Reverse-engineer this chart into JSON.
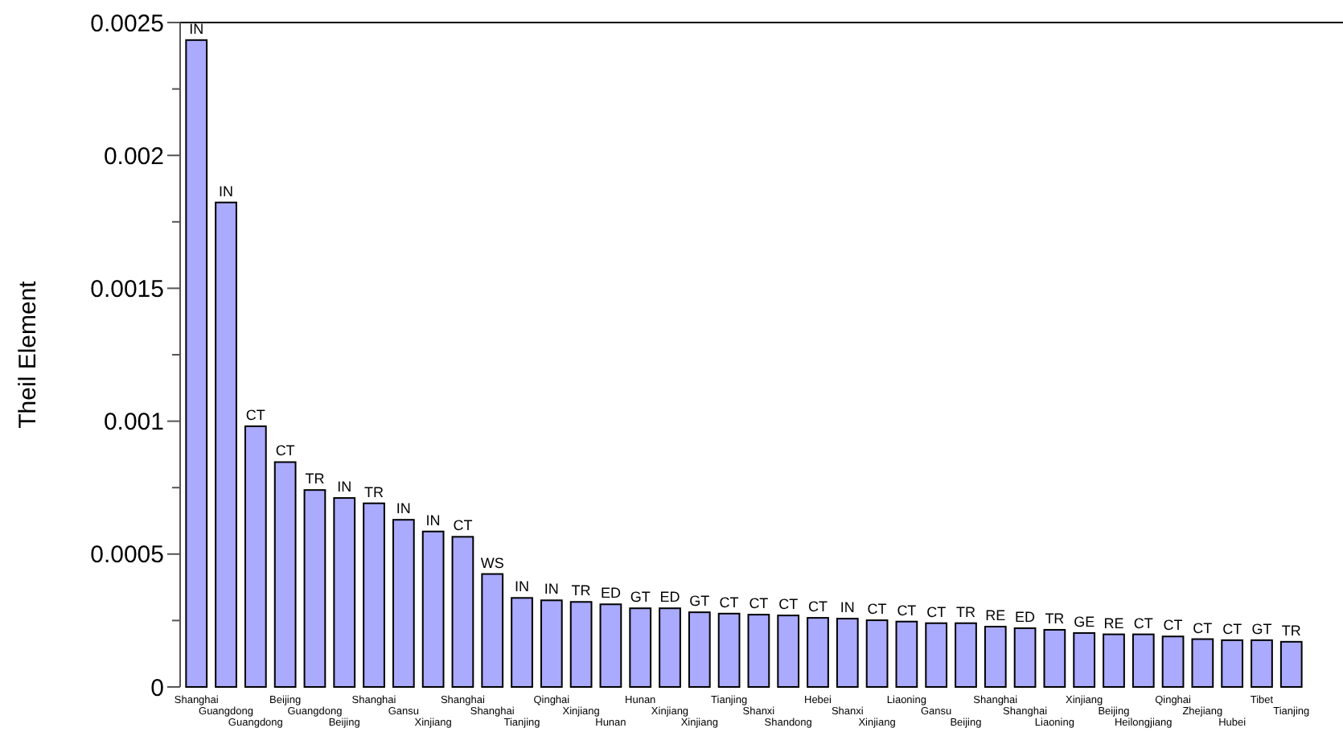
{
  "chart_data": {
    "type": "bar",
    "ylabel": "Theil Element",
    "categories": [
      "Shanghai",
      "Guangdong",
      "Guangdong",
      "Beijing",
      "Guangdong",
      "Beijing",
      "Shanghai",
      "Gansu",
      "Xinjiang",
      "Shanghai",
      "Shanghai",
      "Tianjing",
      "Qinghai",
      "Xinjiang",
      "Hunan",
      "Hunan",
      "Xinjiang",
      "Xinjiang",
      "Tianjing",
      "Shanxi",
      "Shandong",
      "Hebei",
      "Shanxi",
      "Xinjiang",
      "Liaoning",
      "Gansu",
      "Beijing",
      "Shanghai",
      "Shanghai",
      "Liaoning",
      "Xinjiang",
      "Beijing",
      "Heilongjiang",
      "Qinghai",
      "Zhejiang",
      "Hubei",
      "Tibet",
      "Tianjing"
    ],
    "values": [
      0.002434,
      0.001823,
      0.000981,
      0.000846,
      0.000741,
      0.000711,
      0.000691,
      0.000629,
      0.000585,
      0.000565,
      0.000425,
      0.000335,
      0.000326,
      0.00032,
      0.000311,
      0.000296,
      0.000296,
      0.000281,
      0.000276,
      0.000272,
      0.000269,
      0.00026,
      0.000257,
      0.000251,
      0.000246,
      0.00024,
      0.00024,
      0.000227,
      0.000221,
      0.000215,
      0.000203,
      0.000198,
      0.000198,
      0.00019,
      0.00018,
      0.000176,
      0.000176,
      0.00017
    ],
    "value_labels": [
      "IN",
      "IN",
      "CT",
      "CT",
      "TR",
      "IN",
      "TR",
      "IN",
      "IN",
      "CT",
      "WS",
      "IN",
      "IN",
      "TR",
      "ED",
      "GT",
      "ED",
      "GT",
      "CT",
      "CT",
      "CT",
      "CT",
      "IN",
      "CT",
      "CT",
      "CT",
      "TR",
      "RE",
      "ED",
      "TR",
      "GE",
      "RE",
      "CT",
      "CT",
      "CT",
      "CT",
      "GT",
      "TR"
    ],
    "color": "#aaaaff",
    "ylim": [
      0,
      0.0025
    ],
    "yticks": [
      0,
      {
        "value": 0.00025,
        "label": null
      },
      0.0005,
      {
        "value": 0.00075,
        "label": null
      },
      0.001,
      {
        "value": 0.00125,
        "label": null
      },
      0.0015,
      {
        "value": 0.00175,
        "label": null
      },
      0.002,
      {
        "value": 0.00225,
        "label": null
      },
      0.0025
    ]
  }
}
